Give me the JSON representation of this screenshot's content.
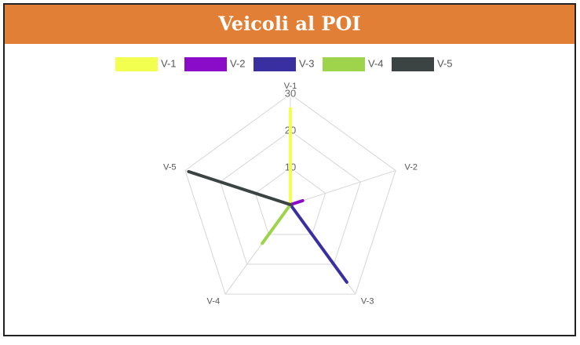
{
  "chart_data": {
    "type": "radar",
    "title": "Veicoli al POI",
    "categories": [
      "V-1",
      "V-2",
      "V-3",
      "V-4",
      "V-5"
    ],
    "series": [
      {
        "name": "V-1",
        "color": "#f3ff4f",
        "values": [
          26,
          0,
          0,
          0,
          0
        ]
      },
      {
        "name": "V-2",
        "color": "#8b0cc8",
        "values": [
          0,
          3.5,
          0,
          0,
          0
        ]
      },
      {
        "name": "V-3",
        "color": "#3a2fa0",
        "values": [
          0,
          0,
          26,
          0,
          0
        ]
      },
      {
        "name": "V-4",
        "color": "#9dd44c",
        "values": [
          0,
          0,
          0,
          13,
          0
        ]
      },
      {
        "name": "V-5",
        "color": "#3c4343",
        "values": [
          0,
          0,
          0,
          0,
          29
        ]
      }
    ],
    "ylim": [
      0,
      30
    ],
    "yticks": [
      10,
      20,
      30
    ],
    "grid": true,
    "legend": "top"
  }
}
